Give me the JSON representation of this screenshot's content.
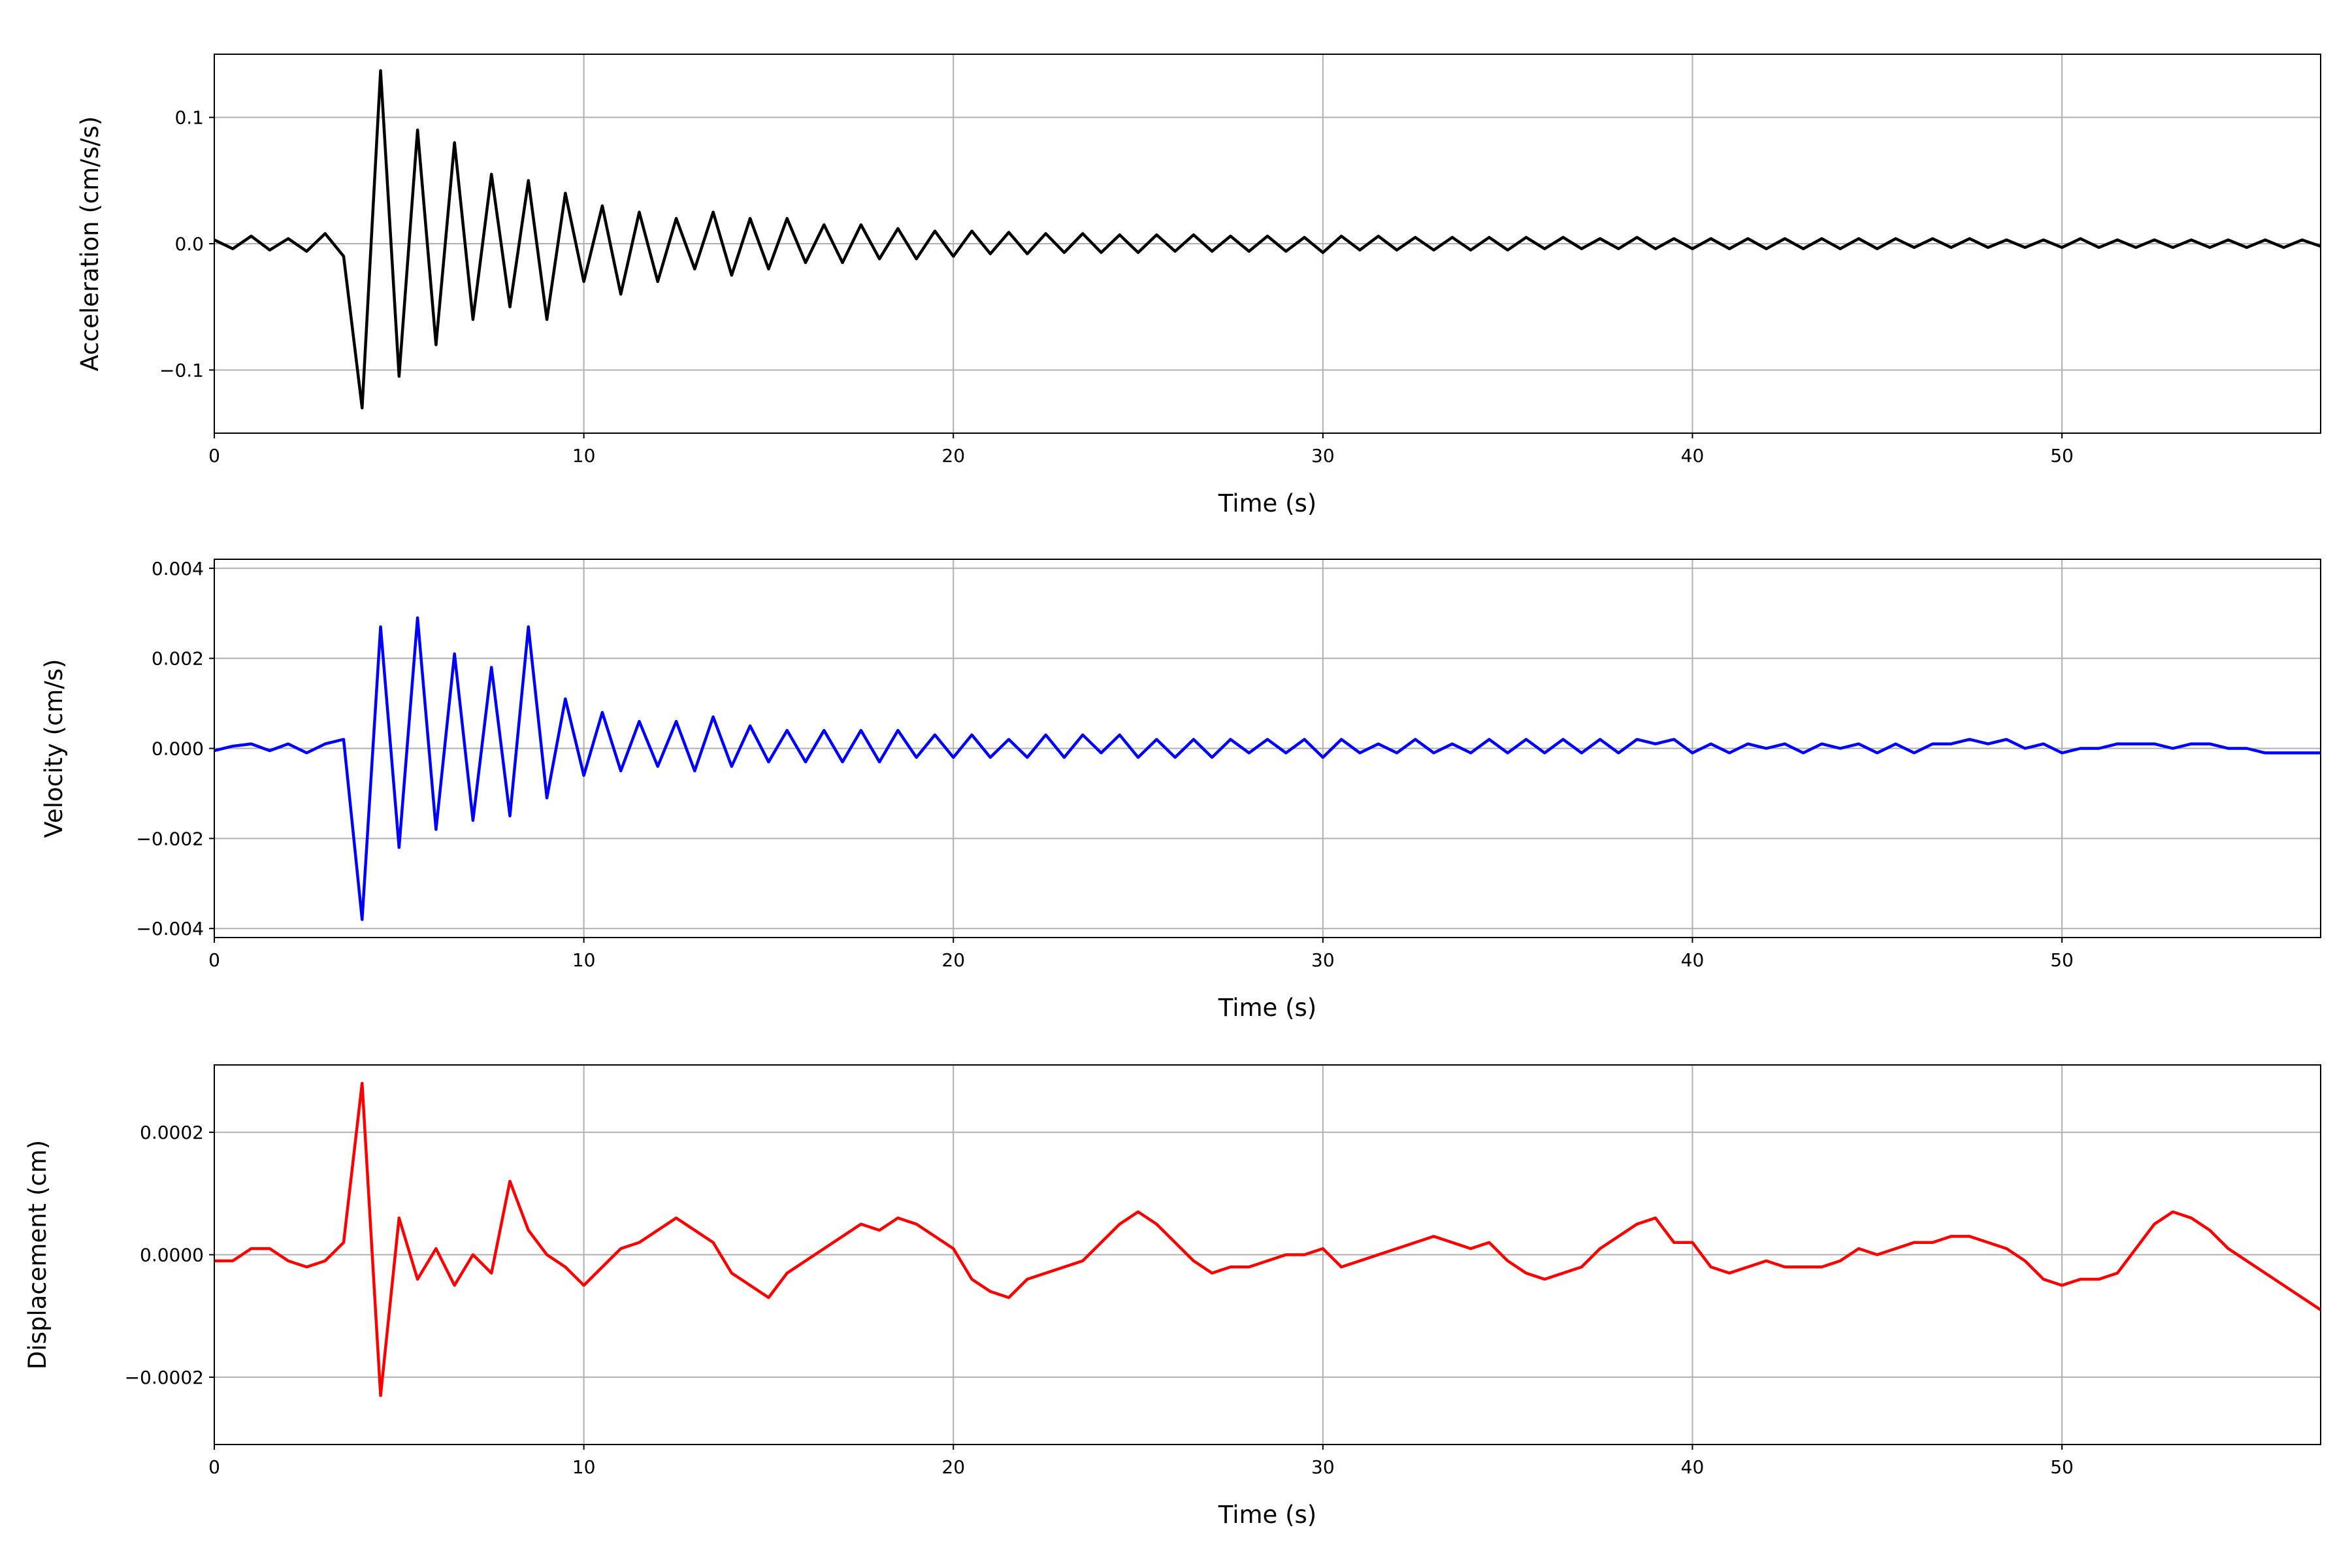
{
  "chart_data": [
    {
      "type": "line",
      "xlabel": "Time (s)",
      "ylabel": "Acceleration (cm/s/s)",
      "color": "#000000",
      "grid": true,
      "xlim": [
        0,
        57
      ],
      "xticks": [
        0,
        10,
        20,
        30,
        40,
        50
      ],
      "ylim": [
        -0.15,
        0.15
      ],
      "yticks": [
        {
          "value": -0.1,
          "label": "−0.1"
        },
        {
          "value": 0,
          "label": "0.0"
        },
        0.1
      ],
      "x": [
        0,
        0.5,
        1,
        1.5,
        2,
        2.5,
        3,
        3.5,
        4,
        4.5,
        5,
        5.5,
        6,
        6.5,
        7,
        7.5,
        8,
        8.5,
        9,
        9.5,
        10,
        10.5,
        11,
        11.5,
        12,
        12.5,
        13,
        13.5,
        14,
        14.5,
        15,
        15.5,
        16,
        16.5,
        17,
        17.5,
        18,
        18.5,
        19,
        19.5,
        20,
        20.5,
        21,
        21.5,
        22,
        22.5,
        23,
        23.5,
        24,
        24.5,
        25,
        25.5,
        26,
        26.5,
        27,
        27.5,
        28,
        28.5,
        29,
        29.5,
        30,
        30.5,
        31,
        31.5,
        32,
        32.5,
        33,
        33.5,
        34,
        34.5,
        35,
        35.5,
        36,
        36.5,
        37,
        37.5,
        38,
        38.5,
        39,
        39.5,
        40,
        40.5,
        41,
        41.5,
        42,
        42.5,
        43,
        43.5,
        44,
        44.5,
        45,
        45.5,
        46,
        46.5,
        47,
        47.5,
        48,
        48.5,
        49,
        49.5,
        50,
        50.5,
        51,
        51.5,
        52,
        52.5,
        53,
        53.5,
        54,
        54.5,
        55,
        55.5,
        56,
        56.5,
        57
      ],
      "values": [
        0.003,
        -0.004,
        0.006,
        -0.005,
        0.004,
        -0.006,
        0.008,
        -0.01,
        -0.13,
        0.137,
        -0.105,
        0.09,
        -0.08,
        0.08,
        -0.06,
        0.055,
        -0.05,
        0.05,
        -0.06,
        0.04,
        -0.03,
        0.03,
        -0.04,
        0.025,
        -0.03,
        0.02,
        -0.02,
        0.025,
        -0.025,
        0.02,
        -0.02,
        0.02,
        -0.015,
        0.015,
        -0.015,
        0.015,
        -0.012,
        0.012,
        -0.012,
        0.01,
        -0.01,
        0.01,
        -0.008,
        0.009,
        -0.008,
        0.008,
        -0.007,
        0.008,
        -0.007,
        0.007,
        -0.007,
        0.007,
        -0.006,
        0.007,
        -0.006,
        0.006,
        -0.006,
        0.006,
        -0.006,
        0.005,
        -0.007,
        0.006,
        -0.005,
        0.006,
        -0.005,
        0.005,
        -0.005,
        0.005,
        -0.005,
        0.005,
        -0.005,
        0.005,
        -0.004,
        0.005,
        -0.004,
        0.004,
        -0.004,
        0.005,
        -0.004,
        0.004,
        -0.004,
        0.004,
        -0.004,
        0.004,
        -0.004,
        0.004,
        -0.004,
        0.004,
        -0.004,
        0.004,
        -0.004,
        0.004,
        -0.003,
        0.004,
        -0.003,
        0.004,
        -0.003,
        0.003,
        -0.003,
        0.003,
        -0.003,
        0.004,
        -0.003,
        0.003,
        -0.003,
        0.003,
        -0.003,
        0.003,
        -0.003,
        0.003,
        -0.003,
        0.003,
        -0.003,
        0.003,
        -0.002
      ]
    },
    {
      "type": "line",
      "xlabel": "Time (s)",
      "ylabel": "Velocity (cm/s)",
      "color": "#0000ff",
      "grid": true,
      "xlim": [
        0,
        57
      ],
      "xticks": [
        0,
        10,
        20,
        30,
        40,
        50
      ],
      "ylim": [
        -0.0042,
        0.0042
      ],
      "yticks": [
        {
          "value": -0.004,
          "label": "−0.004"
        },
        {
          "value": -0.002,
          "label": "−0.002"
        },
        {
          "value": 0,
          "label": "0.000"
        },
        0.002,
        0.004
      ],
      "x": [
        0,
        0.5,
        1,
        1.5,
        2,
        2.5,
        3,
        3.5,
        4,
        4.5,
        5,
        5.5,
        6,
        6.5,
        7,
        7.5,
        8,
        8.5,
        9,
        9.5,
        10,
        10.5,
        11,
        11.5,
        12,
        12.5,
        13,
        13.5,
        14,
        14.5,
        15,
        15.5,
        16,
        16.5,
        17,
        17.5,
        18,
        18.5,
        19,
        19.5,
        20,
        20.5,
        21,
        21.5,
        22,
        22.5,
        23,
        23.5,
        24,
        24.5,
        25,
        25.5,
        26,
        26.5,
        27,
        27.5,
        28,
        28.5,
        29,
        29.5,
        30,
        30.5,
        31,
        31.5,
        32,
        32.5,
        33,
        33.5,
        34,
        34.5,
        35,
        35.5,
        36,
        36.5,
        37,
        37.5,
        38,
        38.5,
        39,
        39.5,
        40,
        40.5,
        41,
        41.5,
        42,
        42.5,
        43,
        43.5,
        44,
        44.5,
        45,
        45.5,
        46,
        46.5,
        47,
        47.5,
        48,
        48.5,
        49,
        49.5,
        50,
        50.5,
        51,
        51.5,
        52,
        52.5,
        53,
        53.5,
        54,
        54.5,
        55,
        55.5,
        56,
        56.5,
        57
      ],
      "values": [
        -5e-05,
        5e-05,
        0.0001,
        -5e-05,
        0.0001,
        -0.0001,
        0.0001,
        0.0002,
        -0.0038,
        0.0027,
        -0.0022,
        0.0029,
        -0.0018,
        0.0021,
        -0.0016,
        0.0018,
        -0.0015,
        0.0027,
        -0.0011,
        0.0011,
        -0.0006,
        0.0008,
        -0.0005,
        0.0006,
        -0.0004,
        0.0006,
        -0.0005,
        0.0007,
        -0.0004,
        0.0005,
        -0.0003,
        0.0004,
        -0.0003,
        0.0004,
        -0.0003,
        0.0004,
        -0.0003,
        0.0004,
        -0.0002,
        0.0003,
        -0.0002,
        0.0003,
        -0.0002,
        0.0002,
        -0.0002,
        0.0003,
        -0.0002,
        0.0003,
        -0.0001,
        0.0003,
        -0.0002,
        0.0002,
        -0.0002,
        0.0002,
        -0.0002,
        0.0002,
        -0.0001,
        0.0002,
        -0.0001,
        0.0002,
        -0.0002,
        0.0002,
        -0.0001,
        0.0001,
        -0.0001,
        0.0002,
        -0.0001,
        0.0001,
        -0.0001,
        0.0002,
        -0.0001,
        0.0002,
        -0.0001,
        0.0002,
        -0.0001,
        0.0002,
        -0.0001,
        0.0002,
        0.0001,
        0.0002,
        -0.0001,
        0.0001,
        -0.0001,
        0.0001,
        0,
        0.0001,
        -0.0001,
        0.0001,
        0,
        0.0001,
        -0.0001,
        0.0001,
        -0.0001,
        0.0001,
        0.0001,
        0.0002,
        0.0001,
        0.0002,
        0,
        0.0001,
        -0.0001,
        0,
        0,
        0.0001,
        0.0001,
        0.0001,
        0,
        0.0001,
        0.0001,
        0,
        0,
        -0.0001,
        -0.0001,
        -0.0001,
        -0.0001
      ]
    },
    {
      "type": "line",
      "xlabel": "Time (s)",
      "ylabel": "Displacement (cm)",
      "color": "#ff0000",
      "grid": true,
      "xlim": [
        0,
        57
      ],
      "xticks": [
        0,
        10,
        20,
        30,
        40,
        50
      ],
      "ylim": [
        -0.00031,
        0.00031
      ],
      "yticks": [
        {
          "value": -0.0002,
          "label": "−0.0002"
        },
        {
          "value": 0,
          "label": "0.0000"
        },
        0.0002
      ],
      "x": [
        0,
        0.5,
        1,
        1.5,
        2,
        2.5,
        3,
        3.5,
        4,
        4.5,
        5,
        5.5,
        6,
        6.5,
        7,
        7.5,
        8,
        8.5,
        9,
        9.5,
        10,
        10.5,
        11,
        11.5,
        12,
        12.5,
        13,
        13.5,
        14,
        14.5,
        15,
        15.5,
        16,
        16.5,
        17,
        17.5,
        18,
        18.5,
        19,
        19.5,
        20,
        20.5,
        21,
        21.5,
        22,
        22.5,
        23,
        23.5,
        24,
        24.5,
        25,
        25.5,
        26,
        26.5,
        27,
        27.5,
        28,
        28.5,
        29,
        29.5,
        30,
        30.5,
        31,
        31.5,
        32,
        32.5,
        33,
        33.5,
        34,
        34.5,
        35,
        35.5,
        36,
        36.5,
        37,
        37.5,
        38,
        38.5,
        39,
        39.5,
        40,
        40.5,
        41,
        41.5,
        42,
        42.5,
        43,
        43.5,
        44,
        44.5,
        45,
        45.5,
        46,
        46.5,
        47,
        47.5,
        48,
        48.5,
        49,
        49.5,
        50,
        50.5,
        51,
        51.5,
        52,
        52.5,
        53,
        53.5,
        54,
        54.5,
        55,
        55.5,
        56,
        56.5,
        57
      ],
      "values": [
        -1e-05,
        -1e-05,
        1e-05,
        1e-05,
        -1e-05,
        -2e-05,
        -1e-05,
        2e-05,
        0.00028,
        -0.00023,
        6e-05,
        -4e-05,
        1e-05,
        -5e-05,
        0,
        -3e-05,
        0.00012,
        4e-05,
        0,
        -2e-05,
        -5e-05,
        -2e-05,
        1e-05,
        2e-05,
        4e-05,
        6e-05,
        4e-05,
        2e-05,
        -3e-05,
        -5e-05,
        -7e-05,
        -3e-05,
        -1e-05,
        1e-05,
        3e-05,
        5e-05,
        4e-05,
        6e-05,
        5e-05,
        3e-05,
        1e-05,
        -4e-05,
        -6e-05,
        -7e-05,
        -4e-05,
        -3e-05,
        -2e-05,
        -1e-05,
        2e-05,
        5e-05,
        7e-05,
        5e-05,
        2e-05,
        -1e-05,
        -3e-05,
        -2e-05,
        -2e-05,
        -1e-05,
        0,
        0,
        1e-05,
        -2e-05,
        -1e-05,
        0,
        1e-05,
        2e-05,
        3e-05,
        2e-05,
        1e-05,
        2e-05,
        -1e-05,
        -3e-05,
        -4e-05,
        -3e-05,
        -2e-05,
        1e-05,
        3e-05,
        5e-05,
        6e-05,
        2e-05,
        2e-05,
        -2e-05,
        -3e-05,
        -2e-05,
        -1e-05,
        -2e-05,
        -2e-05,
        -2e-05,
        -1e-05,
        1e-05,
        0,
        1e-05,
        2e-05,
        2e-05,
        3e-05,
        3e-05,
        2e-05,
        1e-05,
        -1e-05,
        -4e-05,
        -5e-05,
        -4e-05,
        -4e-05,
        -3e-05,
        1e-05,
        5e-05,
        7e-05,
        6e-05,
        4e-05,
        1e-05,
        -1e-05,
        -3e-05,
        -5e-05,
        -7e-05,
        -9e-05
      ]
    }
  ]
}
